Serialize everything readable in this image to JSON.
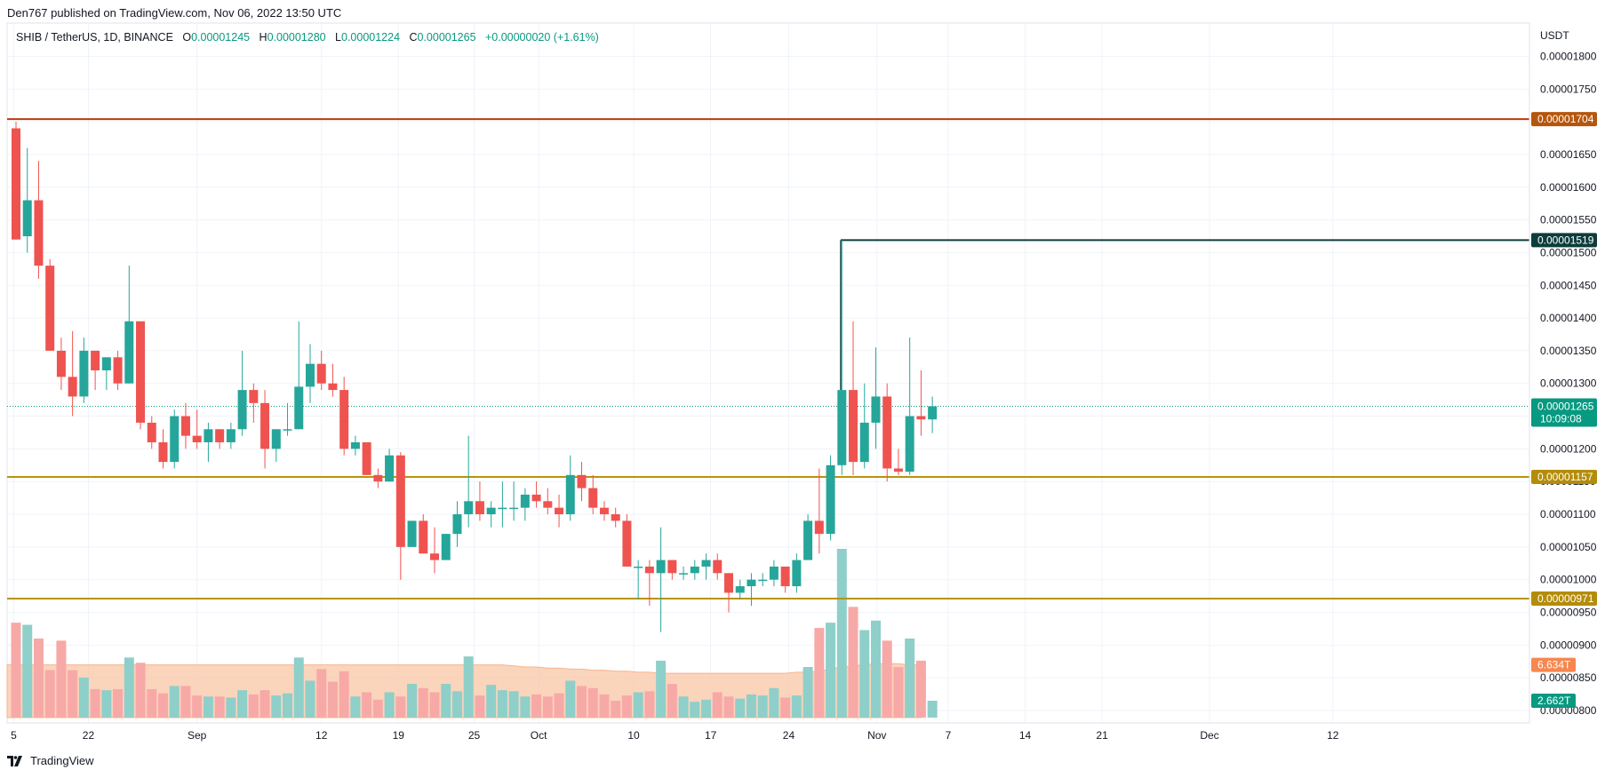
{
  "publisher": "Den767 published on TradingView.com, Nov 06, 2022 13:50 UTC",
  "footer": {
    "brand": "TradingView"
  },
  "legend": {
    "symbol": "SHIB / TetherUS, 1D, BINANCE",
    "o_label": "O",
    "o": "0.00001245",
    "h_label": "H",
    "h": "0.00001280",
    "l_label": "L",
    "l": "0.00001224",
    "c_label": "C",
    "c": "0.00001265",
    "change": "+0.00000020 (+1.61%)"
  },
  "colors": {
    "up": "#26a69a",
    "down": "#ef5350",
    "up_vol": "#8ecfc9",
    "down_vol": "#f7a9a7",
    "level_red": "#b83c0c",
    "level_teal": "#0b3d3b",
    "level_gold": "#b8930d",
    "tag_red": "#b5560c",
    "tag_teal": "#0c3d3c",
    "tag_gold": "#b48c0a",
    "vol_ma": "#f9c6a6",
    "tag_last": "#089981",
    "tag_volma": "#f7864f"
  },
  "chart_data": {
    "type": "candlestick",
    "title": "SHIB / TetherUS, 1D, BINANCE",
    "y_axis_unit": "USDT",
    "ylim": [
      8e-06,
      1.84e-05
    ],
    "y_ticks": [
      "0.00001800",
      "0.00001750",
      "0.00001700",
      "0.00001650",
      "0.00001600",
      "0.00001550",
      "0.00001500",
      "0.00001450",
      "0.00001400",
      "0.00001350",
      "0.00001300",
      "0.00001250",
      "0.00001200",
      "0.00001150",
      "0.00001100",
      "0.00001050",
      "0.00001000",
      "0.00000950",
      "0.00000900",
      "0.00000850",
      "0.00000800"
    ],
    "y_tick_values": [
      1.8e-05,
      1.75e-05,
      1.7e-05,
      1.65e-05,
      1.6e-05,
      1.55e-05,
      1.5e-05,
      1.45e-05,
      1.4e-05,
      1.35e-05,
      1.3e-05,
      1.25e-05,
      1.2e-05,
      1.15e-05,
      1.1e-05,
      1.05e-05,
      1e-05,
      9.5e-06,
      9e-06,
      8.5e-06,
      8e-06
    ],
    "x_tick_labels": [
      {
        "label": "5",
        "bar": -0.2
      },
      {
        "label": "22",
        "bar": 6.4
      },
      {
        "label": "Sep",
        "bar": 16
      },
      {
        "label": "12",
        "bar": 27
      },
      {
        "label": "19",
        "bar": 33.8
      },
      {
        "label": "25",
        "bar": 40.5
      },
      {
        "label": "Oct",
        "bar": 46.2
      },
      {
        "label": "10",
        "bar": 54.6
      },
      {
        "label": "17",
        "bar": 61.4
      },
      {
        "label": "24",
        "bar": 68.3
      },
      {
        "label": "Nov",
        "bar": 76.1
      },
      {
        "label": "7",
        "bar": 82.4
      },
      {
        "label": "14",
        "bar": 89.2
      },
      {
        "label": "21",
        "bar": 96
      },
      {
        "label": "Dec",
        "bar": 105.5
      },
      {
        "label": "12",
        "bar": 116.4
      }
    ],
    "levels": [
      {
        "value": 1.704e-05,
        "label": "0.00001704",
        "color": "level_red",
        "tag": "tag_red",
        "from_bar": -1
      },
      {
        "value": 1.519e-05,
        "label": "0.00001519",
        "color": "level_teal",
        "tag": "tag_teal",
        "from_bar": 72.9
      },
      {
        "value": 1.157e-05,
        "label": "0.00001157",
        "color": "level_gold",
        "tag": "tag_gold",
        "from_bar": -1
      },
      {
        "value": 9.71e-06,
        "label": "0.00000971",
        "color": "level_gold",
        "tag": "tag_gold",
        "from_bar": -1
      }
    ],
    "last_price": {
      "value": 1.265e-05,
      "label": "0.00001265",
      "countdown": "10:09:08"
    },
    "volume": {
      "ma_label": "6.634T",
      "last_label": "2.662T",
      "max_volume": 16,
      "ma": [
        5.0,
        5.0,
        5.0,
        5.0,
        5.0,
        5.0,
        5.0,
        5.0,
        5.0,
        5.0,
        5.0,
        5.0,
        5.0,
        5.0,
        5.0,
        5.0,
        5.0,
        5.0,
        5.0,
        5.0,
        5.0,
        5.0,
        5.0,
        5.0,
        5.0,
        5.0,
        5.0,
        5.0,
        5.0,
        5.0,
        5.0,
        5.0,
        5.0,
        5.0,
        5.0,
        5.0,
        5.0,
        5.0,
        5.0,
        5.0,
        5.0,
        5.0,
        5.0,
        5.0,
        4.9,
        4.8,
        4.8,
        4.7,
        4.7,
        4.6,
        4.6,
        4.5,
        4.5,
        4.4,
        4.4,
        4.3,
        4.3,
        4.2,
        4.2,
        4.2,
        4.2,
        4.2,
        4.2,
        4.2,
        4.2,
        4.2,
        4.2,
        4.2,
        4.2,
        4.3,
        4.3,
        4.4,
        4.6,
        4.8,
        4.9,
        5.0,
        5.1,
        5.1,
        5.1,
        5.0,
        5.0
      ]
    },
    "candles": [
      {
        "o": 1.69e-05,
        "h": 1.7e-05,
        "l": 1.52e-05,
        "c": 1.52e-05,
        "v": 9.0
      },
      {
        "o": 1.525e-05,
        "h": 1.66e-05,
        "l": 1.5e-05,
        "c": 1.58e-05,
        "v": 8.8
      },
      {
        "o": 1.58e-05,
        "h": 1.64e-05,
        "l": 1.46e-05,
        "c": 1.48e-05,
        "v": 7.5
      },
      {
        "o": 1.48e-05,
        "h": 1.49e-05,
        "l": 1.35e-05,
        "c": 1.35e-05,
        "v": 4.5
      },
      {
        "o": 1.35e-05,
        "h": 1.37e-05,
        "l": 1.29e-05,
        "c": 1.31e-05,
        "v": 7.3
      },
      {
        "o": 1.31e-05,
        "h": 1.38e-05,
        "l": 1.25e-05,
        "c": 1.28e-05,
        "v": 4.5
      },
      {
        "o": 1.28e-05,
        "h": 1.37e-05,
        "l": 1.27e-05,
        "c": 1.35e-05,
        "v": 3.8
      },
      {
        "o": 1.35e-05,
        "h": 1.35e-05,
        "l": 1.29e-05,
        "c": 1.32e-05,
        "v": 2.7
      },
      {
        "o": 1.32e-05,
        "h": 1.34e-05,
        "l": 1.29e-05,
        "c": 1.34e-05,
        "v": 2.6
      },
      {
        "o": 1.34e-05,
        "h": 1.35e-05,
        "l": 1.29e-05,
        "c": 1.3e-05,
        "v": 2.7
      },
      {
        "o": 1.3e-05,
        "h": 1.48e-05,
        "l": 1.3e-05,
        "c": 1.395e-05,
        "v": 5.7
      },
      {
        "o": 1.395e-05,
        "h": 1.395e-05,
        "l": 1.23e-05,
        "c": 1.24e-05,
        "v": 5.2
      },
      {
        "o": 1.24e-05,
        "h": 1.25e-05,
        "l": 1.2e-05,
        "c": 1.21e-05,
        "v": 2.7
      },
      {
        "o": 1.21e-05,
        "h": 1.23e-05,
        "l": 1.17e-05,
        "c": 1.18e-05,
        "v": 2.3
      },
      {
        "o": 1.18e-05,
        "h": 1.26e-05,
        "l": 1.17e-05,
        "c": 1.25e-05,
        "v": 3.0
      },
      {
        "o": 1.25e-05,
        "h": 1.27e-05,
        "l": 1.2e-05,
        "c": 1.22e-05,
        "v": 3.0
      },
      {
        "o": 1.22e-05,
        "h": 1.26e-05,
        "l": 1.2e-05,
        "c": 1.21e-05,
        "v": 2.1
      },
      {
        "o": 1.21e-05,
        "h": 1.24e-05,
        "l": 1.18e-05,
        "c": 1.23e-05,
        "v": 2.0
      },
      {
        "o": 1.23e-05,
        "h": 1.23e-05,
        "l": 1.2e-05,
        "c": 1.21e-05,
        "v": 2.0
      },
      {
        "o": 1.21e-05,
        "h": 1.24e-05,
        "l": 1.2e-05,
        "c": 1.23e-05,
        "v": 1.9
      },
      {
        "o": 1.23e-05,
        "h": 1.35e-05,
        "l": 1.22e-05,
        "c": 1.29e-05,
        "v": 2.6
      },
      {
        "o": 1.29e-05,
        "h": 1.3e-05,
        "l": 1.24e-05,
        "c": 1.27e-05,
        "v": 2.2
      },
      {
        "o": 1.27e-05,
        "h": 1.29e-05,
        "l": 1.17e-05,
        "c": 1.2e-05,
        "v": 2.6
      },
      {
        "o": 1.2e-05,
        "h": 1.23e-05,
        "l": 1.18e-05,
        "c": 1.23e-05,
        "v": 2.1
      },
      {
        "o": 1.23e-05,
        "h": 1.27e-05,
        "l": 1.22e-05,
        "c": 1.23e-05,
        "v": 2.3
      },
      {
        "o": 1.23e-05,
        "h": 1.395e-05,
        "l": 1.23e-05,
        "c": 1.295e-05,
        "v": 5.7
      },
      {
        "o": 1.295e-05,
        "h": 1.36e-05,
        "l": 1.27e-05,
        "c": 1.33e-05,
        "v": 3.5
      },
      {
        "o": 1.33e-05,
        "h": 1.35e-05,
        "l": 1.29e-05,
        "c": 1.3e-05,
        "v": 4.6
      },
      {
        "o": 1.3e-05,
        "h": 1.33e-05,
        "l": 1.28e-05,
        "c": 1.29e-05,
        "v": 3.4
      },
      {
        "o": 1.29e-05,
        "h": 1.31e-05,
        "l": 1.19e-05,
        "c": 1.2e-05,
        "v": 4.4
      },
      {
        "o": 1.2e-05,
        "h": 1.22e-05,
        "l": 1.19e-05,
        "c": 1.21e-05,
        "v": 2.0
      },
      {
        "o": 1.21e-05,
        "h": 1.21e-05,
        "l": 1.16e-05,
        "c": 1.16e-05,
        "v": 2.4
      },
      {
        "o": 1.16e-05,
        "h": 1.17e-05,
        "l": 1.14e-05,
        "c": 1.15e-05,
        "v": 1.7
      },
      {
        "o": 1.15e-05,
        "h": 1.2e-05,
        "l": 1.15e-05,
        "c": 1.19e-05,
        "v": 2.4
      },
      {
        "o": 1.19e-05,
        "h": 1.195e-05,
        "l": 1e-05,
        "c": 1.05e-05,
        "v": 2.0
      },
      {
        "o": 1.05e-05,
        "h": 1.09e-05,
        "l": 1.05e-05,
        "c": 1.09e-05,
        "v": 3.2
      },
      {
        "o": 1.09e-05,
        "h": 1.1e-05,
        "l": 1.04e-05,
        "c": 1.04e-05,
        "v": 2.8
      },
      {
        "o": 1.04e-05,
        "h": 1.08e-05,
        "l": 1.01e-05,
        "c": 1.03e-05,
        "v": 2.4
      },
      {
        "o": 1.03e-05,
        "h": 1.07e-05,
        "l": 1.03e-05,
        "c": 1.07e-05,
        "v": 3.2
      },
      {
        "o": 1.07e-05,
        "h": 1.12e-05,
        "l": 1.05e-05,
        "c": 1.1e-05,
        "v": 2.5
      },
      {
        "o": 1.1e-05,
        "h": 1.22e-05,
        "l": 1.08e-05,
        "c": 1.12e-05,
        "v": 5.8
      },
      {
        "o": 1.12e-05,
        "h": 1.15e-05,
        "l": 1.09e-05,
        "c": 1.1e-05,
        "v": 2.1
      },
      {
        "o": 1.1e-05,
        "h": 1.12e-05,
        "l": 1.08e-05,
        "c": 1.11e-05,
        "v": 3.1
      },
      {
        "o": 1.11e-05,
        "h": 1.15e-05,
        "l": 1.08e-05,
        "c": 1.11e-05,
        "v": 2.6
      },
      {
        "o": 1.11e-05,
        "h": 1.15e-05,
        "l": 1.09e-05,
        "c": 1.11e-05,
        "v": 2.5
      },
      {
        "o": 1.11e-05,
        "h": 1.14e-05,
        "l": 1.09e-05,
        "c": 1.13e-05,
        "v": 2.0
      },
      {
        "o": 1.13e-05,
        "h": 1.15e-05,
        "l": 1.11e-05,
        "c": 1.12e-05,
        "v": 2.2
      },
      {
        "o": 1.12e-05,
        "h": 1.14e-05,
        "l": 1.1e-05,
        "c": 1.11e-05,
        "v": 2.0
      },
      {
        "o": 1.11e-05,
        "h": 1.13e-05,
        "l": 1.08e-05,
        "c": 1.1e-05,
        "v": 2.3
      },
      {
        "o": 1.1e-05,
        "h": 1.19e-05,
        "l": 1.09e-05,
        "c": 1.16e-05,
        "v": 3.5
      },
      {
        "o": 1.16e-05,
        "h": 1.18e-05,
        "l": 1.12e-05,
        "c": 1.14e-05,
        "v": 3.0
      },
      {
        "o": 1.14e-05,
        "h": 1.16e-05,
        "l": 1.1e-05,
        "c": 1.11e-05,
        "v": 2.8
      },
      {
        "o": 1.11e-05,
        "h": 1.12e-05,
        "l": 1.09e-05,
        "c": 1.1e-05,
        "v": 2.2
      },
      {
        "o": 1.1e-05,
        "h": 1.11e-05,
        "l": 1.08e-05,
        "c": 1.09e-05,
        "v": 1.6
      },
      {
        "o": 1.09e-05,
        "h": 1.1e-05,
        "l": 1.02e-05,
        "c": 1.02e-05,
        "v": 2.1
      },
      {
        "o": 1.02e-05,
        "h": 1.03e-05,
        "l": 9.7e-06,
        "c": 1.02e-05,
        "v": 2.4
      },
      {
        "o": 1.02e-05,
        "h": 1.03e-05,
        "l": 9.6e-06,
        "c": 1.01e-05,
        "v": 2.5
      },
      {
        "o": 1.01e-05,
        "h": 1.08e-05,
        "l": 9.2e-06,
        "c": 1.03e-05,
        "v": 5.4
      },
      {
        "o": 1.03e-05,
        "h": 1.03e-05,
        "l": 1e-05,
        "c": 1.01e-05,
        "v": 3.2
      },
      {
        "o": 1.01e-05,
        "h": 1.02e-05,
        "l": 1e-05,
        "c": 1.01e-05,
        "v": 2.0
      },
      {
        "o": 1.01e-05,
        "h": 1.03e-05,
        "l": 1e-05,
        "c": 1.02e-05,
        "v": 1.5
      },
      {
        "o": 1.02e-05,
        "h": 1.04e-05,
        "l": 1e-05,
        "c": 1.03e-05,
        "v": 1.7
      },
      {
        "o": 1.03e-05,
        "h": 1.04e-05,
        "l": 1e-05,
        "c": 1.01e-05,
        "v": 2.4
      },
      {
        "o": 1.01e-05,
        "h": 1.01e-05,
        "l": 9.5e-06,
        "c": 9.8e-06,
        "v": 2.0
      },
      {
        "o": 9.8e-06,
        "h": 1e-05,
        "l": 9.7e-06,
        "c": 9.9e-06,
        "v": 1.8
      },
      {
        "o": 9.9e-06,
        "h": 1.01e-05,
        "l": 9.6e-06,
        "c": 1e-05,
        "v": 2.2
      },
      {
        "o": 1e-05,
        "h": 1.01e-05,
        "l": 9.9e-06,
        "c": 1e-05,
        "v": 2.1
      },
      {
        "o": 1e-05,
        "h": 1.03e-05,
        "l": 9.9e-06,
        "c": 1.02e-05,
        "v": 2.8
      },
      {
        "o": 1.02e-05,
        "h": 1.02e-05,
        "l": 9.8e-06,
        "c": 9.9e-06,
        "v": 1.9
      },
      {
        "o": 9.9e-06,
        "h": 1.04e-05,
        "l": 9.8e-06,
        "c": 1.03e-05,
        "v": 2.1
      },
      {
        "o": 1.03e-05,
        "h": 1.1e-05,
        "l": 1.03e-05,
        "c": 1.09e-05,
        "v": 4.8
      },
      {
        "o": 1.09e-05,
        "h": 1.17e-05,
        "l": 1.04e-05,
        "c": 1.07e-05,
        "v": 8.5
      },
      {
        "o": 1.07e-05,
        "h": 1.19e-05,
        "l": 1.06e-05,
        "c": 1.175e-05,
        "v": 9.0
      },
      {
        "o": 1.175e-05,
        "h": 1.519e-05,
        "l": 1.16e-05,
        "c": 1.29e-05,
        "v": 16.0
      },
      {
        "o": 1.29e-05,
        "h": 1.395e-05,
        "l": 1.16e-05,
        "c": 1.18e-05,
        "v": 10.5
      },
      {
        "o": 1.18e-05,
        "h": 1.3e-05,
        "l": 1.17e-05,
        "c": 1.24e-05,
        "v": 8.3
      },
      {
        "o": 1.24e-05,
        "h": 1.355e-05,
        "l": 1.2e-05,
        "c": 1.28e-05,
        "v": 9.2
      },
      {
        "o": 1.28e-05,
        "h": 1.3e-05,
        "l": 1.15e-05,
        "c": 1.17e-05,
        "v": 7.3
      },
      {
        "o": 1.17e-05,
        "h": 1.2e-05,
        "l": 1.16e-05,
        "c": 1.165e-05,
        "v": 4.8
      },
      {
        "o": 1.165e-05,
        "h": 1.37e-05,
        "l": 1.16e-05,
        "c": 1.25e-05,
        "v": 7.5
      },
      {
        "o": 1.25e-05,
        "h": 1.32e-05,
        "l": 1.22e-05,
        "c": 1.245e-05,
        "v": 5.4
      },
      {
        "o": 1.245e-05,
        "h": 1.28e-05,
        "l": 1.224e-05,
        "c": 1.265e-05,
        "v": 1.6
      }
    ]
  }
}
